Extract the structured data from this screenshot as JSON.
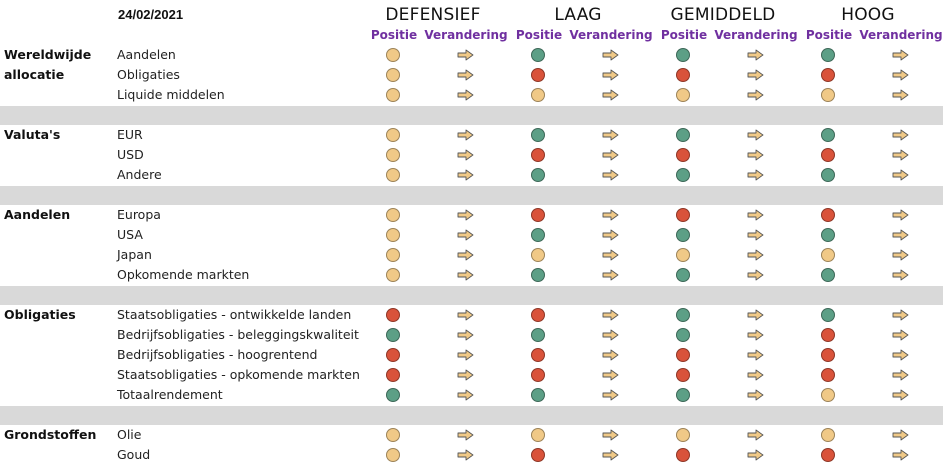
{
  "date": "24/02/2021",
  "profiles": [
    "DEFENSIEF",
    "LAAG",
    "GEMIDDELD",
    "HOOG"
  ],
  "sub_headers": {
    "position": "Positie",
    "change": "Verandering"
  },
  "colors": {
    "orange": "#f0c987",
    "red": "#d9533b",
    "green": "#5c9f86",
    "arrow": "#f0c987",
    "purple": "#7030a0",
    "separator": "#d9d9d9"
  },
  "change_icon": "arrow-right-icon",
  "sections": [
    {
      "category": "Wereldwijde allocatie",
      "rows": [
        {
          "label": "Aandelen",
          "positions": [
            "orange",
            "green",
            "green",
            "green"
          ]
        },
        {
          "label": "Obligaties",
          "positions": [
            "orange",
            "red",
            "red",
            "red"
          ]
        },
        {
          "label": "Liquide middelen",
          "positions": [
            "orange",
            "orange",
            "orange",
            "orange"
          ]
        }
      ]
    },
    {
      "category": "Valuta's",
      "rows": [
        {
          "label": "EUR",
          "positions": [
            "orange",
            "green",
            "green",
            "green"
          ]
        },
        {
          "label": "USD",
          "positions": [
            "orange",
            "red",
            "red",
            "red"
          ]
        },
        {
          "label": "Andere",
          "positions": [
            "orange",
            "green",
            "green",
            "green"
          ]
        }
      ]
    },
    {
      "category": "Aandelen",
      "rows": [
        {
          "label": "Europa",
          "positions": [
            "orange",
            "red",
            "red",
            "red"
          ]
        },
        {
          "label": "USA",
          "positions": [
            "orange",
            "green",
            "green",
            "green"
          ]
        },
        {
          "label": "Japan",
          "positions": [
            "orange",
            "orange",
            "orange",
            "orange"
          ]
        },
        {
          "label": "Opkomende markten",
          "positions": [
            "orange",
            "green",
            "green",
            "green"
          ]
        }
      ]
    },
    {
      "category": "Obligaties",
      "rows": [
        {
          "label": "Staatsobligaties - ontwikkelde landen",
          "positions": [
            "red",
            "red",
            "green",
            "green"
          ]
        },
        {
          "label": "Bedrijfsobligaties - beleggingskwaliteit",
          "positions": [
            "green",
            "green",
            "green",
            "red"
          ]
        },
        {
          "label": "Bedrijfsobligaties - hoogrentend",
          "positions": [
            "red",
            "red",
            "red",
            "red"
          ]
        },
        {
          "label": "Staatsobligaties - opkomende markten",
          "positions": [
            "red",
            "red",
            "red",
            "red"
          ]
        },
        {
          "label": "Totaalrendement",
          "positions": [
            "green",
            "green",
            "green",
            "orange"
          ]
        }
      ]
    },
    {
      "category": "Grondstoffen",
      "rows": [
        {
          "label": "Olie",
          "positions": [
            "orange",
            "orange",
            "orange",
            "orange"
          ]
        },
        {
          "label": "Goud",
          "positions": [
            "orange",
            "red",
            "red",
            "red"
          ]
        }
      ]
    }
  ]
}
